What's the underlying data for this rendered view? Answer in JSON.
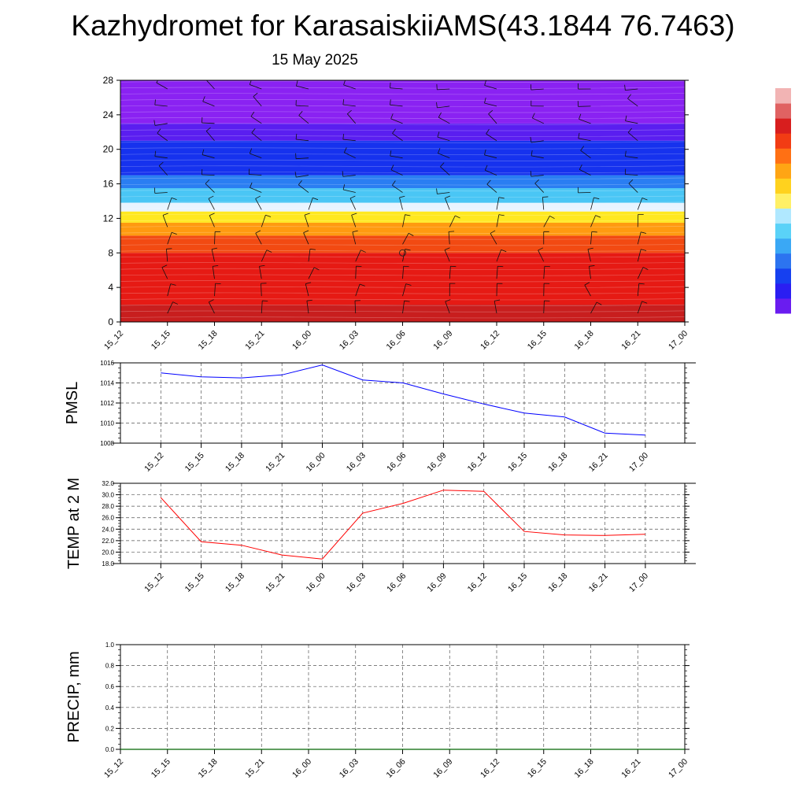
{
  "header": {
    "title": "Kazhydromet for KarasaiskiiAMS(43.1844 76.7463)",
    "subtitle": "15 May 2025"
  },
  "chart_data": [
    {
      "type": "heatmap",
      "name": "vertical-profile",
      "x_categories": [
        "15_12",
        "15_15",
        "15_18",
        "15_21",
        "16_00",
        "16_03",
        "16_06",
        "16_09",
        "16_12",
        "16_15",
        "16_18",
        "16_21",
        "17_00"
      ],
      "ylim": [
        0,
        28
      ],
      "yticks": [
        0,
        4,
        8,
        12,
        16,
        20,
        24,
        28
      ],
      "color_bands": [
        {
          "y0": 0,
          "y1": 2,
          "color": "#c81e1e"
        },
        {
          "y0": 2,
          "y1": 8,
          "color": "#e61a14"
        },
        {
          "y0": 8,
          "y1": 10,
          "color": "#f24a12"
        },
        {
          "y0": 10,
          "y1": 11.5,
          "color": "#ff9a10"
        },
        {
          "y0": 11.5,
          "y1": 12.8,
          "color": "#ffe820"
        },
        {
          "y0": 12.8,
          "y1": 13.8,
          "color": "#e8f4ff"
        },
        {
          "y0": 13.8,
          "y1": 15.5,
          "color": "#4ac6f5"
        },
        {
          "y0": 15.5,
          "y1": 17,
          "color": "#2a7ef2"
        },
        {
          "y0": 17,
          "y1": 21,
          "color": "#1632ee"
        },
        {
          "y0": 21,
          "y1": 23,
          "color": "#5a1ef0"
        },
        {
          "y0": 23,
          "y1": 28,
          "color": "#8a22f2"
        }
      ],
      "wind_levels": [
        1,
        3,
        5,
        7,
        9,
        11,
        13,
        15,
        17,
        19,
        21,
        23,
        25,
        27
      ],
      "grid": false,
      "colorbar": {
        "colors": [
          "#6a1cf0",
          "#2a1ef2",
          "#1640f0",
          "#2c74f0",
          "#3aa8f5",
          "#5ad2f8",
          "#b0e8ff",
          "#fff066",
          "#ffd21e",
          "#ffa514",
          "#ff7014",
          "#f23c14",
          "#d81e1e",
          "#e06262",
          "#f2b4b4"
        ]
      }
    },
    {
      "type": "line",
      "name": "pmsl",
      "ylabel": "PMSL",
      "x": [
        "15_12",
        "15_15",
        "15_18",
        "15_21",
        "16_00",
        "16_03",
        "16_06",
        "16_09",
        "16_12",
        "16_15",
        "16_18",
        "16_21",
        "17_00"
      ],
      "y": [
        1015.0,
        1014.6,
        1014.5,
        1014.8,
        1015.8,
        1014.3,
        1014.0,
        1012.9,
        1011.9,
        1011.0,
        1010.6,
        1009.0,
        1008.8
      ],
      "ylim": [
        1008,
        1016
      ],
      "yticks": [
        1008,
        1010,
        1012,
        1014,
        1016
      ],
      "color": "#0000ff",
      "grid": true
    },
    {
      "type": "line",
      "name": "temp",
      "ylabel": "TEMP at 2 M",
      "x": [
        "15_12",
        "15_15",
        "15_18",
        "15_21",
        "16_00",
        "16_03",
        "16_06",
        "16_09",
        "16_12",
        "16_15",
        "16_18",
        "16_21",
        "17_00"
      ],
      "y": [
        29.5,
        21.8,
        21.2,
        19.5,
        18.8,
        26.8,
        28.5,
        30.8,
        30.6,
        23.6,
        23.0,
        22.9,
        23.1
      ],
      "ylim": [
        18,
        32
      ],
      "yticks": [
        "18.0",
        "20.0",
        "22.0",
        "24.0",
        "26.0",
        "28.0",
        "30.0",
        "32.0"
      ],
      "color": "#ff0000",
      "grid": true
    },
    {
      "type": "line",
      "name": "precip",
      "ylabel": "PRECIP, mm",
      "x": [
        "15_12",
        "15_15",
        "15_18",
        "15_21",
        "16_00",
        "16_03",
        "16_06",
        "16_09",
        "16_12",
        "16_15",
        "16_18",
        "16_21",
        "17_00"
      ],
      "y": [
        0,
        0,
        0,
        0,
        0,
        0,
        0,
        0,
        0,
        0,
        0,
        0,
        0
      ],
      "ylim": [
        0,
        1
      ],
      "yticks": [
        "0.0",
        "0.2",
        "0.4",
        "0.6",
        "0.8",
        "1.0"
      ],
      "color": "#006400",
      "grid": true
    }
  ]
}
